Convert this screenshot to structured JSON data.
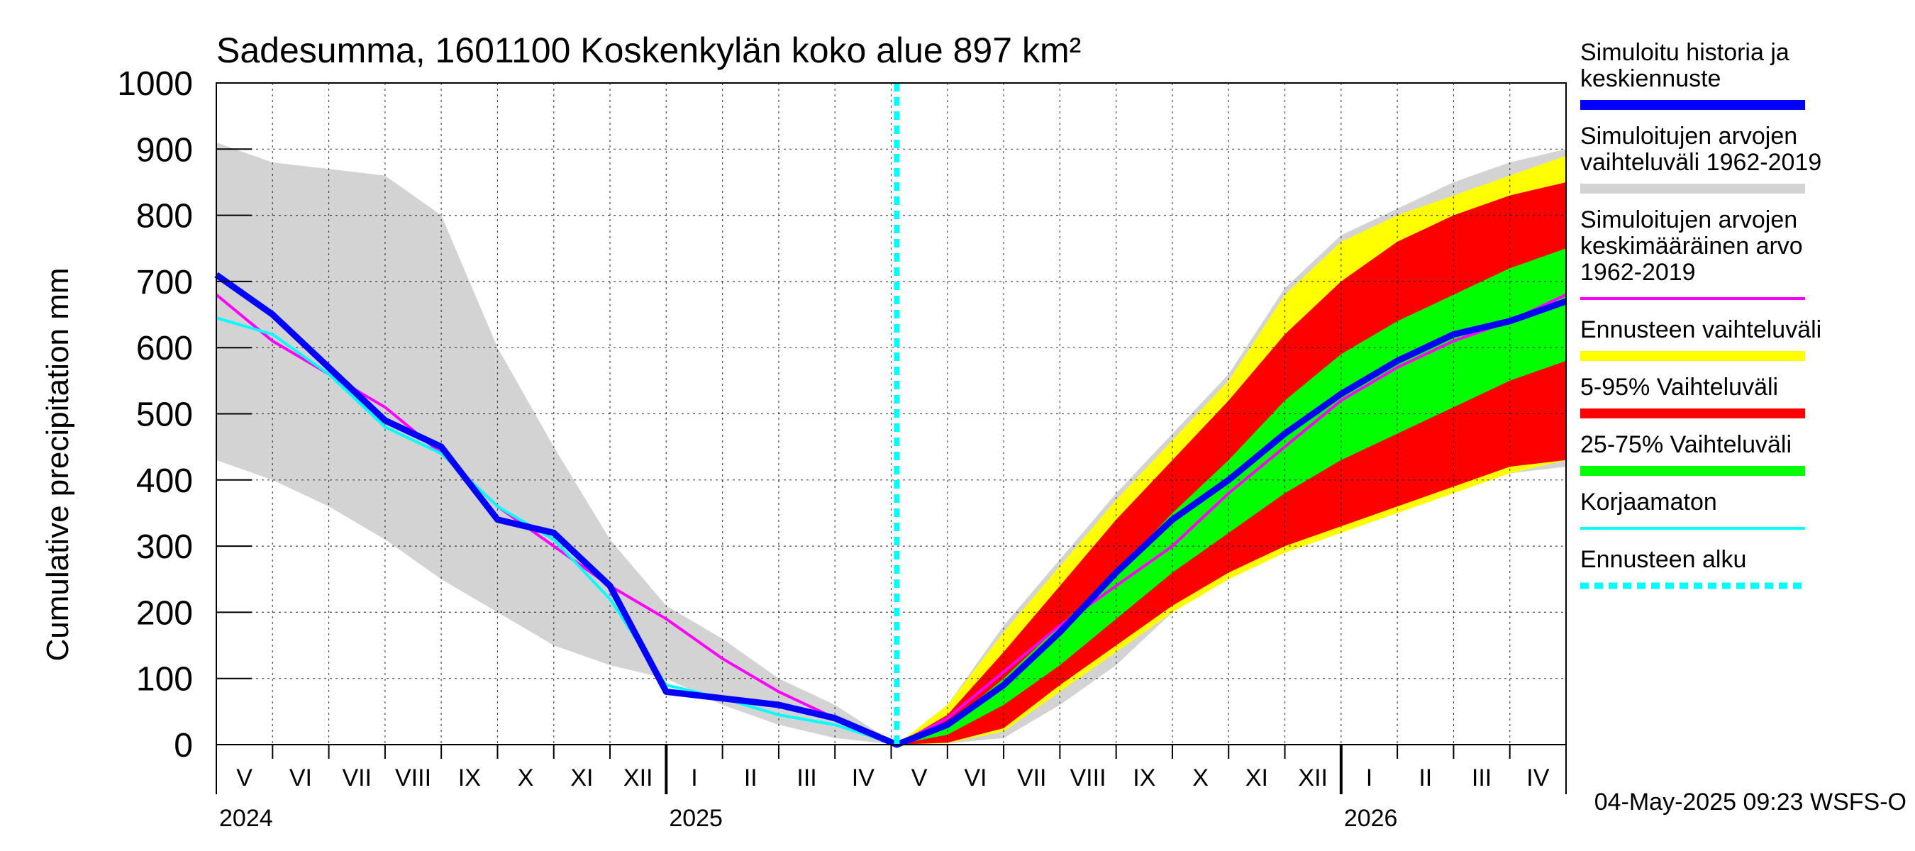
{
  "chart_data": {
    "type": "area",
    "title": "Sadesumma, 1601100 Koskenkylän koko alue 897 km²",
    "ylabel": "Cumulative precipitation   mm",
    "ylim": [
      0,
      1000
    ],
    "yticks": [
      0,
      100,
      200,
      300,
      400,
      500,
      600,
      700,
      800,
      900,
      1000
    ],
    "x_unit": "months since 2024-05-01",
    "xlim": [
      0,
      24
    ],
    "forecast_start": 12.1,
    "month_labels": [
      {
        "m": 0,
        "label": "V"
      },
      {
        "m": 1,
        "label": "VI"
      },
      {
        "m": 2,
        "label": "VII"
      },
      {
        "m": 3,
        "label": "VIII"
      },
      {
        "m": 4,
        "label": "IX"
      },
      {
        "m": 5,
        "label": "X"
      },
      {
        "m": 6,
        "label": "XI"
      },
      {
        "m": 7,
        "label": "XII"
      },
      {
        "m": 8,
        "label": "I"
      },
      {
        "m": 9,
        "label": "II"
      },
      {
        "m": 10,
        "label": "III"
      },
      {
        "m": 11,
        "label": "IV"
      },
      {
        "m": 12,
        "label": "V"
      },
      {
        "m": 13,
        "label": "VI"
      },
      {
        "m": 14,
        "label": "VII"
      },
      {
        "m": 15,
        "label": "VIII"
      },
      {
        "m": 16,
        "label": "IX"
      },
      {
        "m": 17,
        "label": "X"
      },
      {
        "m": 18,
        "label": "XI"
      },
      {
        "m": 19,
        "label": "XII"
      },
      {
        "m": 20,
        "label": "I"
      },
      {
        "m": 21,
        "label": "II"
      },
      {
        "m": 22,
        "label": "III"
      },
      {
        "m": 23,
        "label": "IV"
      }
    ],
    "year_labels": [
      {
        "m": 0,
        "label": "2024"
      },
      {
        "m": 8,
        "label": "2025"
      },
      {
        "m": 20,
        "label": "2026"
      }
    ],
    "series": [
      {
        "name": "Simuloitujen arvojen vaihteluväli 1962-2019",
        "kind": "band",
        "color": "#d3d3d3",
        "x": [
          0,
          1,
          2,
          3,
          4,
          5,
          6,
          7,
          8,
          9,
          10,
          11,
          12.1,
          13,
          14,
          15,
          16,
          17,
          18,
          19,
          20,
          21,
          22,
          23,
          24
        ],
        "lower": [
          430,
          400,
          360,
          310,
          250,
          200,
          150,
          120,
          100,
          60,
          30,
          10,
          0,
          2,
          10,
          60,
          120,
          200,
          260,
          300,
          330,
          360,
          390,
          410,
          420
        ],
        "upper": [
          910,
          880,
          870,
          860,
          800,
          600,
          450,
          310,
          210,
          160,
          100,
          60,
          0,
          60,
          180,
          280,
          380,
          470,
          560,
          690,
          770,
          810,
          850,
          880,
          900
        ]
      },
      {
        "name": "Ennusteen vaihteluväli",
        "kind": "band",
        "color": "#ffff00",
        "x": [
          12.1,
          13,
          14,
          15,
          16,
          17,
          18,
          19,
          20,
          21,
          22,
          23,
          24
        ],
        "lower": [
          0,
          2,
          20,
          80,
          140,
          200,
          250,
          290,
          320,
          350,
          380,
          410,
          430
        ],
        "upper": [
          0,
          60,
          170,
          270,
          370,
          460,
          550,
          680,
          760,
          800,
          830,
          860,
          890
        ]
      },
      {
        "name": "5-95% Vaihteluväli",
        "kind": "band",
        "color": "#ff0000",
        "x": [
          12.1,
          13,
          14,
          15,
          16,
          17,
          18,
          19,
          20,
          21,
          22,
          23,
          24
        ],
        "lower": [
          0,
          3,
          25,
          90,
          150,
          210,
          260,
          300,
          330,
          360,
          390,
          420,
          430
        ],
        "upper": [
          0,
          45,
          140,
          240,
          340,
          430,
          520,
          620,
          700,
          760,
          800,
          830,
          850
        ]
      },
      {
        "name": "25-75% Vaihteluväli",
        "kind": "band",
        "color": "#00ff00",
        "x": [
          12.1,
          13,
          14,
          15,
          16,
          17,
          18,
          19,
          20,
          21,
          22,
          23,
          24
        ],
        "lower": [
          0,
          15,
          60,
          120,
          190,
          260,
          320,
          380,
          430,
          470,
          510,
          550,
          580
        ],
        "upper": [
          0,
          30,
          100,
          180,
          260,
          350,
          430,
          520,
          590,
          640,
          680,
          720,
          750
        ]
      },
      {
        "name": "Simuloitujen arvojen keskimääräinen arvo 1962-2019",
        "kind": "line",
        "color": "#ff00ff",
        "x": [
          0,
          1,
          2,
          3,
          4,
          5,
          6,
          7,
          8,
          9,
          10,
          11,
          12.1,
          13,
          14,
          15,
          16,
          17,
          18,
          19,
          20,
          21,
          22,
          23,
          24
        ],
        "y": [
          680,
          610,
          560,
          510,
          440,
          360,
          300,
          240,
          190,
          130,
          80,
          40,
          0,
          40,
          110,
          180,
          240,
          300,
          380,
          450,
          520,
          570,
          610,
          640,
          680
        ]
      },
      {
        "name": "Korjaamaton",
        "kind": "line",
        "color": "#00ffff",
        "x": [
          0,
          1,
          2,
          3,
          4,
          5,
          6,
          7,
          8,
          9,
          10,
          11,
          12.1
        ],
        "y": [
          645,
          620,
          560,
          480,
          440,
          360,
          310,
          220,
          90,
          70,
          45,
          30,
          0
        ]
      },
      {
        "name": "Simuloitu historia ja keskiennuste",
        "kind": "line",
        "color": "#0000ff",
        "x": [
          0,
          1,
          2,
          3,
          4,
          5,
          6,
          7,
          8,
          9,
          10,
          11,
          12.1,
          13,
          14,
          15,
          16,
          17,
          18,
          19,
          20,
          21,
          22,
          23,
          24
        ],
        "y": [
          710,
          650,
          570,
          490,
          450,
          340,
          320,
          240,
          80,
          70,
          60,
          40,
          0,
          30,
          90,
          170,
          260,
          340,
          400,
          470,
          530,
          580,
          620,
          640,
          670
        ]
      },
      {
        "name": "Ennusteen alku",
        "kind": "vline",
        "color": "#00ffff",
        "x": 12.1
      }
    ],
    "legend": [
      {
        "lines": [
          "Simuloitu historia ja",
          "keskiennuste"
        ],
        "color": "#0000ff",
        "style": "solid-thick"
      },
      {
        "lines": [
          "Simuloitujen arvojen",
          "vaihteluväli 1962-2019"
        ],
        "color": "#d3d3d3",
        "style": "solid-thick"
      },
      {
        "lines": [
          "Simuloitujen arvojen",
          "keskimääräinen arvo",
          "   1962-2019"
        ],
        "color": "#ff00ff",
        "style": "solid"
      },
      {
        "lines": [
          "Ennusteen vaihteluväli"
        ],
        "color": "#ffff00",
        "style": "solid-thick"
      },
      {
        "lines": [
          "5-95% Vaihteluväli"
        ],
        "color": "#ff0000",
        "style": "solid-thick"
      },
      {
        "lines": [
          "25-75% Vaihteluväli"
        ],
        "color": "#00ff00",
        "style": "solid-thick"
      },
      {
        "lines": [
          "Korjaamaton"
        ],
        "color": "#00ffff",
        "style": "solid"
      },
      {
        "lines": [
          "Ennusteen alku"
        ],
        "color": "#00ffff",
        "style": "dashed"
      }
    ],
    "footer": "04-May-2025 09:23 WSFS-O",
    "grid": true
  }
}
